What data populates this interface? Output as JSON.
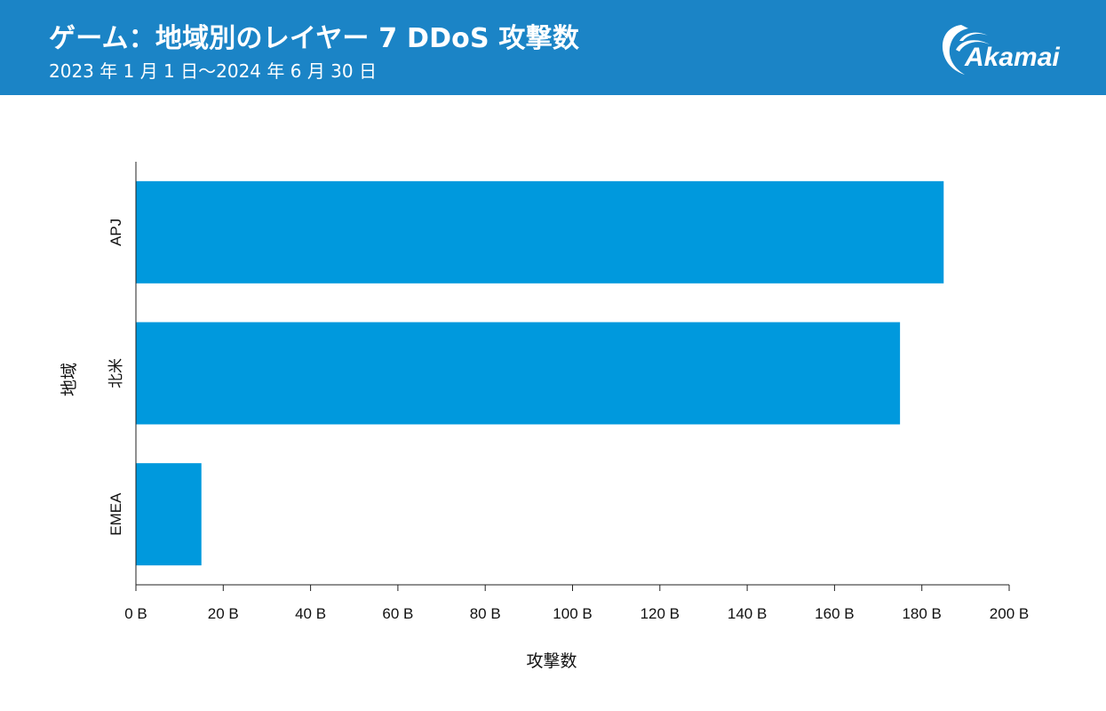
{
  "header": {
    "title": "ゲーム：地域別のレイヤー 7 DDoS 攻撃数",
    "subtitle": "2023 年 1 月 1 日～2024 年 6 月 30 日",
    "logo_text": "Akamai",
    "background_color": "#1b84c6"
  },
  "chart_data": {
    "type": "bar",
    "orientation": "horizontal",
    "title": "ゲーム：地域別のレイヤー 7 DDoS 攻撃数",
    "subtitle": "2023 年 1 月 1 日～2024 年 6 月 30 日",
    "xlabel": "攻撃数",
    "ylabel": "地域",
    "categories": [
      "APJ",
      "北米",
      "EMEA"
    ],
    "values": [
      185000000000,
      175000000000,
      15000000000
    ],
    "xlim": [
      0,
      200000000000
    ],
    "ticks": [
      0,
      20000000000,
      40000000000,
      60000000000,
      80000000000,
      100000000000,
      120000000000,
      140000000000,
      160000000000,
      180000000000,
      200000000000
    ],
    "tick_labels": [
      "0 B",
      "20 B",
      "40 B",
      "60 B",
      "80 B",
      "100 B",
      "120 B",
      "140 B",
      "160 B",
      "180 B",
      "200 B"
    ],
    "bar_color": "#0099dd",
    "grid": false,
    "legend": "none"
  }
}
